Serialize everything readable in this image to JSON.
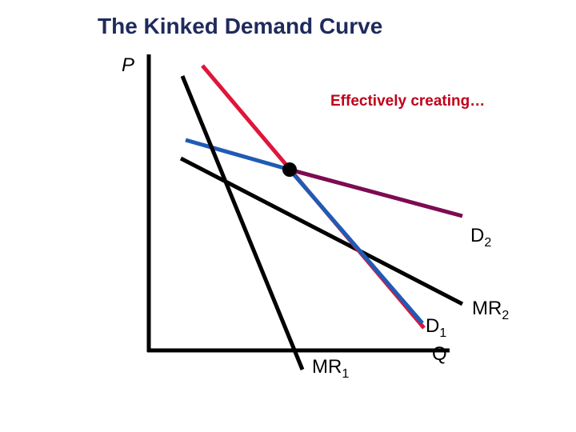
{
  "header": {
    "title": "The Kinked Demand Curve"
  },
  "axes": {
    "y_label": "P",
    "x_label": "Q"
  },
  "annotation": "Effectively creating…",
  "curve_labels": [
    {
      "base": "D",
      "sub": "2"
    },
    {
      "base": "MR",
      "sub": "2"
    },
    {
      "base": "D",
      "sub": "1"
    },
    {
      "base": "MR",
      "sub": "1"
    }
  ]
}
